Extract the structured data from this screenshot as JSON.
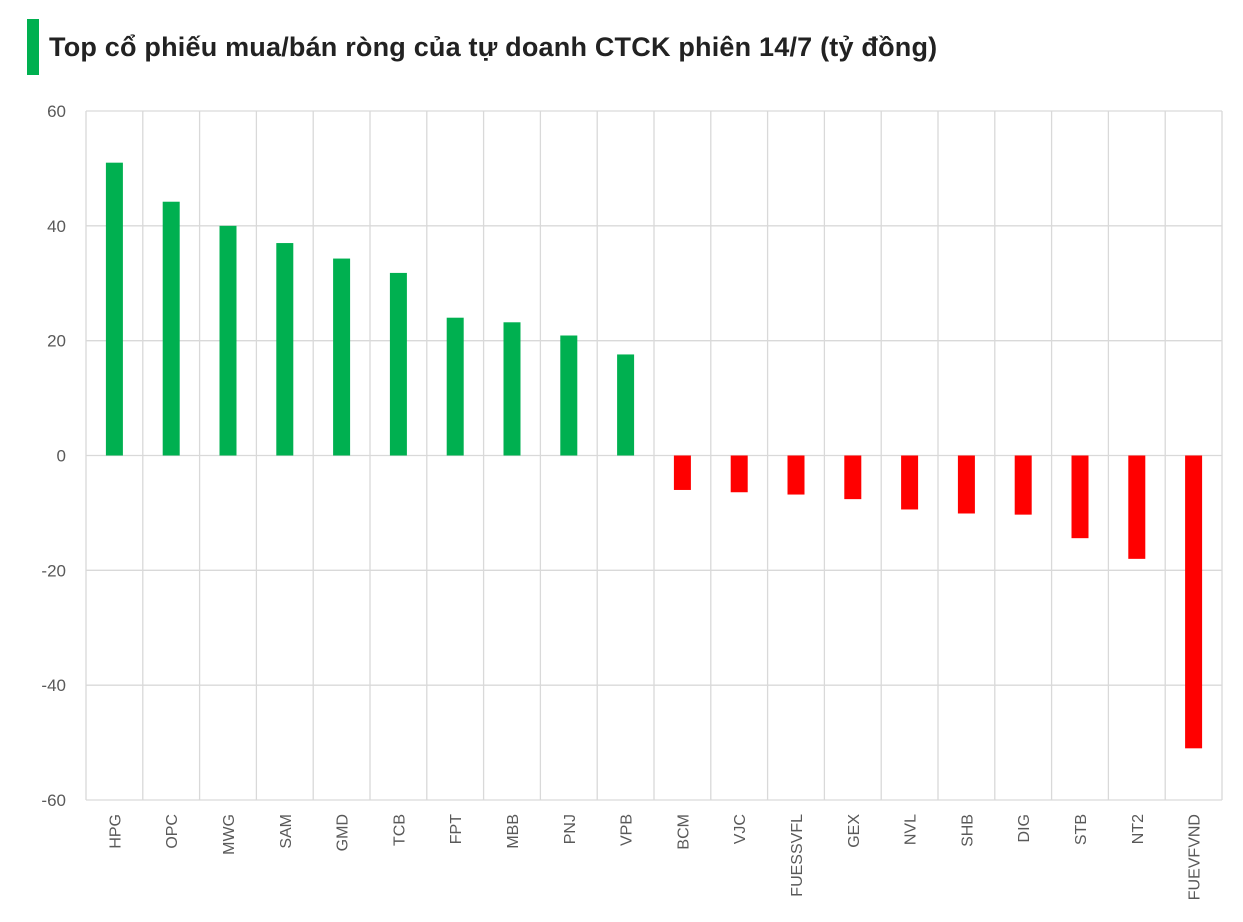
{
  "chart_data": {
    "type": "bar",
    "title": "Top cổ phiếu mua/bán ròng của tự doanh CTCK phiên 14/7 (tỷ đồng)",
    "categories": [
      "HPG",
      "OPC",
      "MWG",
      "SAM",
      "GMD",
      "TCB",
      "FPT",
      "MBB",
      "PNJ",
      "VPB",
      "BCM",
      "VJC",
      "FUESSVFL",
      "GEX",
      "NVL",
      "SHB",
      "DIG",
      "STB",
      "NT2",
      "FUEVFVND"
    ],
    "values": [
      51,
      44.2,
      40,
      37,
      34.3,
      31.8,
      24,
      23.2,
      20.9,
      17.6,
      -6,
      -6.4,
      -6.8,
      -7.6,
      -9.4,
      -10.1,
      -10.3,
      -14.4,
      -18,
      -51
    ],
    "ylim": [
      -60,
      60
    ],
    "yticks": [
      60,
      40,
      20,
      0,
      -20,
      -40,
      -60
    ],
    "grid": true,
    "colors": {
      "positive": "#00b050",
      "negative": "#ff0000",
      "grid": "#d9d9d9",
      "accent": "#00b050"
    }
  }
}
